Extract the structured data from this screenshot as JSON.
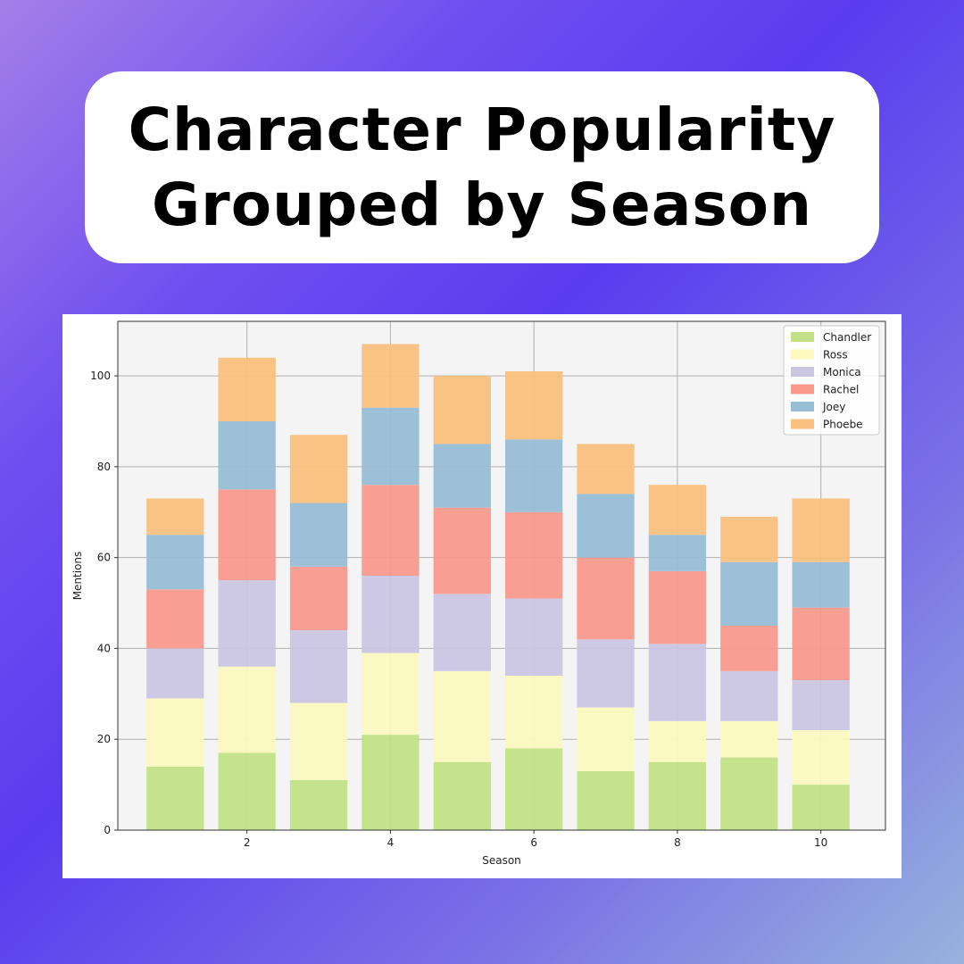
{
  "header": {
    "title_line1": "Character Popularity",
    "title_line2": "Grouped by Season"
  },
  "chart_data": {
    "type": "bar",
    "stacked": true,
    "x": [
      1,
      2,
      3,
      4,
      5,
      6,
      7,
      8,
      9,
      10
    ],
    "xticks": [
      2,
      4,
      6,
      8,
      10
    ],
    "yticks": [
      0,
      20,
      40,
      60,
      80,
      100
    ],
    "xlabel": "Season",
    "ylabel": "Mentions",
    "ylim": [
      0,
      112
    ],
    "xlim": [
      0.2,
      10.9
    ],
    "grid": true,
    "legend_position": "top-right",
    "series": [
      {
        "name": "Chandler",
        "color": "#c2e187",
        "values": [
          14,
          17,
          11,
          21,
          15,
          18,
          13,
          15,
          16,
          10
        ]
      },
      {
        "name": "Ross",
        "color": "#fbf9c0",
        "values": [
          15,
          19,
          17,
          18,
          20,
          16,
          14,
          9,
          8,
          12
        ]
      },
      {
        "name": "Monica",
        "color": "#cac5e1",
        "values": [
          11,
          19,
          16,
          17,
          17,
          17,
          15,
          17,
          11,
          11
        ]
      },
      {
        "name": "Rachel",
        "color": "#f8998c",
        "values": [
          13,
          20,
          14,
          20,
          19,
          19,
          18,
          16,
          10,
          16
        ]
      },
      {
        "name": "Joey",
        "color": "#98bdd7",
        "values": [
          12,
          15,
          14,
          17,
          14,
          16,
          14,
          8,
          14,
          10
        ]
      },
      {
        "name": "Phoebe",
        "color": "#f9c080",
        "values": [
          8,
          14,
          15,
          14,
          15,
          15,
          11,
          11,
          10,
          14
        ]
      }
    ]
  }
}
